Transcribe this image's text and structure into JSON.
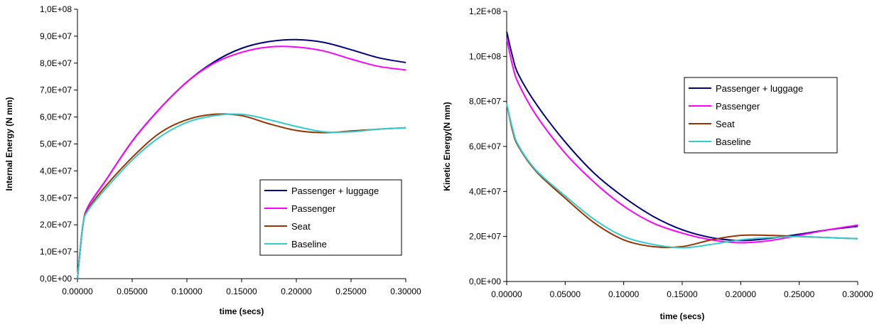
{
  "chart_data": [
    {
      "type": "line",
      "xlabel": "time (secs)",
      "ylabel": "Internal Energy (N mm)",
      "xlim": [
        0,
        0.3
      ],
      "ylim": [
        0,
        100000000
      ],
      "x_ticks": [
        0,
        0.05,
        0.1,
        0.15,
        0.2,
        0.25,
        0.3
      ],
      "x_tick_labels": [
        "0.00000",
        "0.05000",
        "0.10000",
        "0.15000",
        "0.20000",
        "0.25000",
        "0.30000"
      ],
      "y_ticks": [
        0,
        10000000,
        20000000,
        30000000,
        40000000,
        50000000,
        60000000,
        70000000,
        80000000,
        90000000,
        100000000
      ],
      "y_tick_labels": [
        "0,0E+00",
        "1,0E+07",
        "2,0E+07",
        "3,0E+07",
        "4,0E+07",
        "5,0E+07",
        "6,0E+07",
        "7,0E+07",
        "8,0E+07",
        "9,0E+07",
        "1,0E+08"
      ],
      "grid": false,
      "legend_position": "bottom-right",
      "x": [
        0,
        0.005,
        0.01,
        0.025,
        0.05,
        0.075,
        0.1,
        0.125,
        0.15,
        0.175,
        0.2,
        0.225,
        0.25,
        0.275,
        0.3
      ],
      "series": [
        {
          "name": "Passenger + luggage",
          "color": "#000080",
          "values": [
            0,
            20000000,
            27000000,
            36000000,
            51000000,
            63000000,
            73000000,
            80500000,
            85500000,
            88000000,
            88700000,
            87700000,
            85000000,
            82000000,
            80200000
          ]
        },
        {
          "name": "Passenger",
          "color": "#ff00ff",
          "values": [
            0,
            20000000,
            27000000,
            36000000,
            51000000,
            63000000,
            73000000,
            80000000,
            84000000,
            86000000,
            86000000,
            84500000,
            81500000,
            78800000,
            77500000
          ]
        },
        {
          "name": "Seat",
          "color": "#993300",
          "values": [
            0,
            20000000,
            26000000,
            34000000,
            45000000,
            54000000,
            59000000,
            61000000,
            60500000,
            57500000,
            55000000,
            54200000,
            54800000,
            55500000,
            56000000
          ]
        },
        {
          "name": "Baseline",
          "color": "#33cccc",
          "values": [
            0,
            20000000,
            25500000,
            33000000,
            44000000,
            52500000,
            58000000,
            60500000,
            61000000,
            59000000,
            56500000,
            54500000,
            54500000,
            55500000,
            56000000
          ]
        }
      ]
    },
    {
      "type": "line",
      "xlabel": "time (secs)",
      "ylabel": "Kinetic Energy(N mm)",
      "xlim": [
        0,
        0.3
      ],
      "ylim": [
        0,
        120000000
      ],
      "x_ticks": [
        0,
        0.05,
        0.1,
        0.15,
        0.2,
        0.25,
        0.3
      ],
      "x_tick_labels": [
        "0.00000",
        "0.05000",
        "0.10000",
        "0.15000",
        "0.20000",
        "0.25000",
        "0.30000"
      ],
      "y_ticks": [
        0,
        20000000,
        40000000,
        60000000,
        80000000,
        100000000,
        120000000
      ],
      "y_tick_labels": [
        "0,0E+00",
        "2,0E+07",
        "4,0E+07",
        "6,0E+07",
        "8,0E+07",
        "1,0E+08",
        "1,2E+08"
      ],
      "grid": false,
      "legend_position": "top-right",
      "x": [
        0,
        0.005,
        0.01,
        0.025,
        0.05,
        0.075,
        0.1,
        0.125,
        0.15,
        0.175,
        0.2,
        0.225,
        0.25,
        0.275,
        0.3
      ],
      "series": [
        {
          "name": "Passenger + luggage",
          "color": "#000080",
          "values": [
            111000000,
            100000000,
            92000000,
            79000000,
            62000000,
            48000000,
            37500000,
            29000000,
            23000000,
            19500000,
            18200000,
            19200000,
            21000000,
            23000000,
            24500000
          ]
        },
        {
          "name": "Passenger",
          "color": "#ff00ff",
          "values": [
            108000000,
            96000000,
            88000000,
            74000000,
            57000000,
            44000000,
            33500000,
            26000000,
            21500000,
            18500000,
            17200000,
            18200000,
            20500000,
            23000000,
            25000000
          ]
        },
        {
          "name": "Seat",
          "color": "#993300",
          "values": [
            79000000,
            67000000,
            60000000,
            49000000,
            37000000,
            26000000,
            18500000,
            15500000,
            15500000,
            18500000,
            20500000,
            20500000,
            20000000,
            19500000,
            19000000
          ]
        },
        {
          "name": "Baseline",
          "color": "#33cccc",
          "values": [
            79000000,
            68000000,
            60500000,
            49500000,
            38000000,
            27500000,
            20000000,
            16500000,
            15000000,
            16500000,
            18500000,
            19500000,
            20000000,
            19500000,
            19000000
          ]
        }
      ]
    }
  ]
}
